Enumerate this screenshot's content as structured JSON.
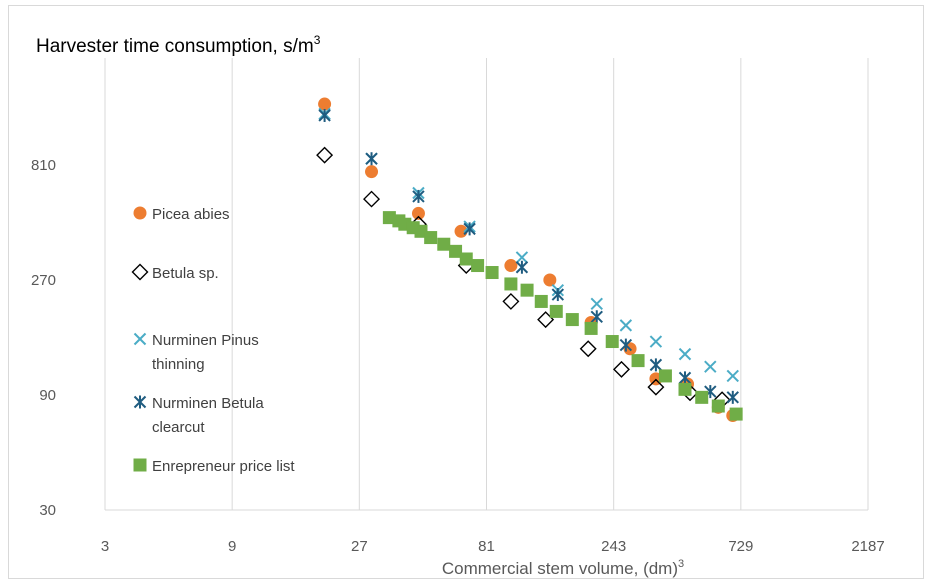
{
  "chart_data": {
    "type": "scatter",
    "title": "Harvester time consumption, s/m",
    "title_sup": "3",
    "xlabel": "Commercial stem volume, (dm)",
    "xlabel_sup": "3",
    "xscale": "log3",
    "yscale": "log3",
    "xlim": [
      3,
      2187
    ],
    "ylim": [
      30,
      2430
    ],
    "xticks": [
      "3",
      "9",
      "27",
      "81",
      "243",
      "729",
      "2187"
    ],
    "yticks": [
      "30",
      "90",
      "270",
      "810"
    ],
    "grid": "vertical",
    "legend_position": "left-inside",
    "series": [
      {
        "name": "Picea abies",
        "marker": "circle",
        "color": "#ED7D31",
        "points": [
          [
            20,
            1450
          ],
          [
            30,
            760
          ],
          [
            45,
            510
          ],
          [
            65,
            430
          ],
          [
            100,
            310
          ],
          [
            140,
            270
          ],
          [
            200,
            180
          ],
          [
            280,
            140
          ],
          [
            350,
            105
          ],
          [
            460,
            100
          ],
          [
            600,
            80
          ],
          [
            680,
            74
          ]
        ]
      },
      {
        "name": "Betula sp.",
        "marker": "diamond",
        "color": "#000000",
        "points": [
          [
            20,
            890
          ],
          [
            30,
            585
          ],
          [
            45,
            460
          ],
          [
            68,
            310
          ],
          [
            100,
            220
          ],
          [
            135,
            185
          ],
          [
            195,
            140
          ],
          [
            260,
            115
          ],
          [
            350,
            97
          ],
          [
            470,
            92
          ],
          [
            620,
            86
          ]
        ]
      },
      {
        "name": "Nurminen Pinus thinning",
        "marker": "x",
        "color": "#4BACC6",
        "points": [
          [
            20,
            1320
          ],
          [
            30,
            860
          ],
          [
            45,
            620
          ],
          [
            70,
            450
          ],
          [
            110,
            335
          ],
          [
            150,
            245
          ],
          [
            210,
            215
          ],
          [
            270,
            175
          ],
          [
            350,
            150
          ],
          [
            450,
            133
          ],
          [
            560,
            118
          ],
          [
            680,
            108
          ]
        ]
      },
      {
        "name": "Nurminen Betula clearcut",
        "marker": "asterisk",
        "color": "#1F5C80",
        "points": [
          [
            20,
            1300
          ],
          [
            30,
            860
          ],
          [
            45,
            600
          ],
          [
            70,
            440
          ],
          [
            110,
            305
          ],
          [
            150,
            235
          ],
          [
            210,
            190
          ],
          [
            270,
            145
          ],
          [
            350,
            120
          ],
          [
            450,
            106
          ],
          [
            560,
            93
          ],
          [
            680,
            88
          ]
        ]
      },
      {
        "name": "Enrepreneur price list",
        "marker": "square",
        "color": "#70AD47",
        "points": [
          [
            35,
            490
          ],
          [
            38,
            475
          ],
          [
            40,
            460
          ],
          [
            43,
            445
          ],
          [
            46,
            430
          ],
          [
            50,
            405
          ],
          [
            56,
            380
          ],
          [
            62,
            355
          ],
          [
            68,
            330
          ],
          [
            75,
            310
          ],
          [
            85,
            290
          ],
          [
            100,
            260
          ],
          [
            115,
            245
          ],
          [
            130,
            220
          ],
          [
            148,
            200
          ],
          [
            170,
            185
          ],
          [
            200,
            170
          ],
          [
            240,
            150
          ],
          [
            300,
            125
          ],
          [
            380,
            108
          ],
          [
            450,
            95
          ],
          [
            520,
            88
          ],
          [
            600,
            81
          ],
          [
            700,
            75
          ]
        ]
      }
    ]
  }
}
